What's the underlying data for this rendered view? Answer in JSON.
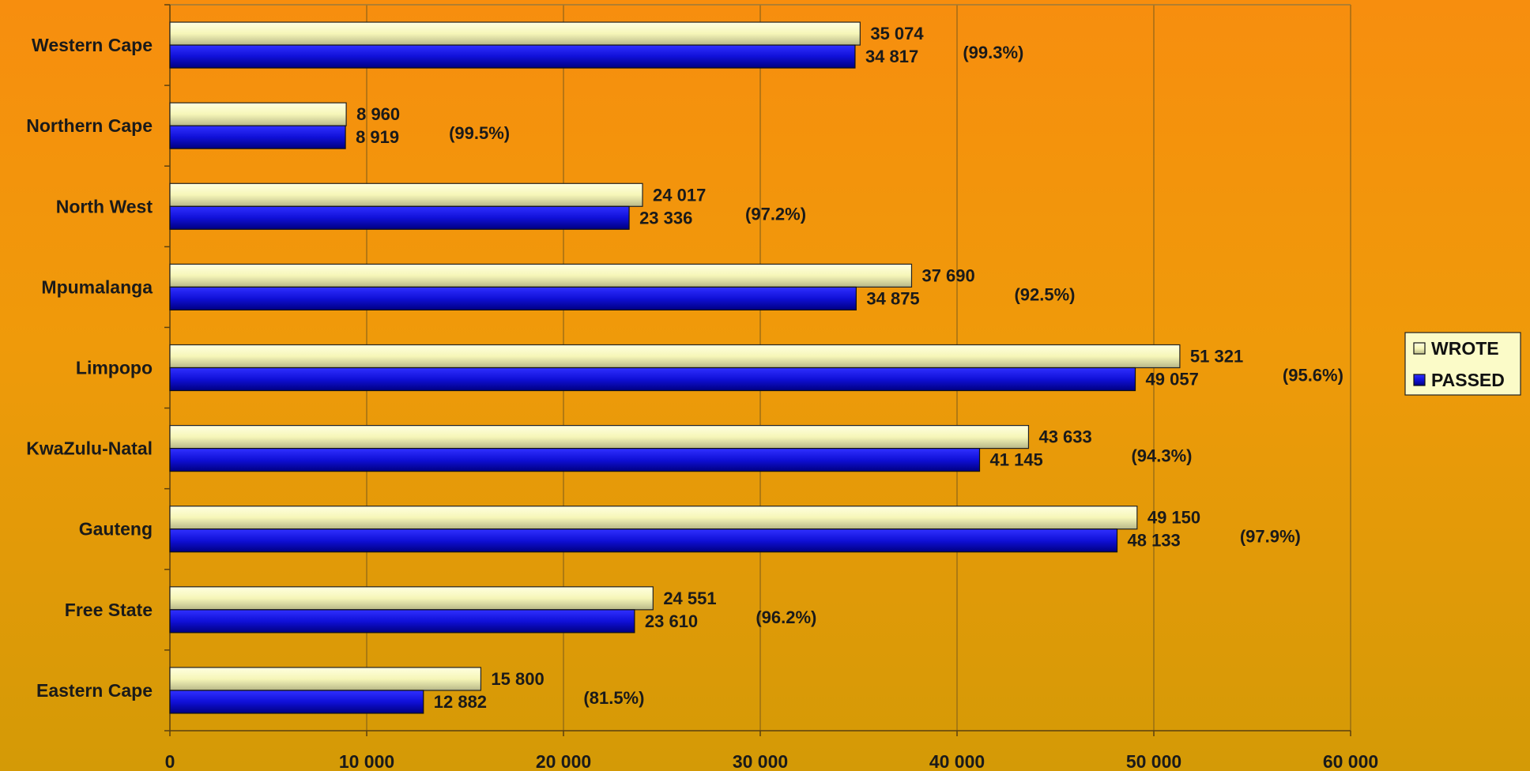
{
  "chart_data": {
    "type": "bar",
    "orientation": "horizontal",
    "categories": [
      "Western Cape",
      "Northern Cape",
      "North West",
      "Mpumalanga",
      "Limpopo",
      "KwaZulu-Natal",
      "Gauteng",
      "Free State",
      "Eastern Cape"
    ],
    "series": [
      {
        "name": "WROTE",
        "color": "#f6f6b8",
        "values": [
          35074,
          8960,
          24017,
          37690,
          51321,
          43633,
          49150,
          24551,
          15800
        ],
        "labels": [
          "35 074",
          "8 960",
          "24 017",
          "37 690",
          "51 321",
          "43 633",
          "49 150",
          "24 551",
          "15 800"
        ]
      },
      {
        "name": "PASSED",
        "color": "#1010d8",
        "values": [
          34817,
          8919,
          23336,
          34875,
          49057,
          41145,
          48133,
          23610,
          12882
        ],
        "labels": [
          "34 817",
          "8 919",
          "23 336",
          "34 875",
          "49 057",
          "41 145",
          "48 133",
          "23 610",
          "12 882"
        ]
      }
    ],
    "percentages": [
      "(99.3%)",
      "(99.5%)",
      "(97.2%)",
      "(92.5%)",
      "(95.6%)",
      "(94.3%)",
      "(97.9%)",
      "(96.2%)",
      "(81.5%)"
    ],
    "xlim": [
      0,
      60000
    ],
    "xticks": [
      0,
      10000,
      20000,
      30000,
      40000,
      50000,
      60000
    ],
    "xtick_labels": [
      "0",
      "10 000",
      "20 000",
      "30 000",
      "40 000",
      "50 000",
      "60 000"
    ],
    "grid": "vertical",
    "legend": "right"
  }
}
